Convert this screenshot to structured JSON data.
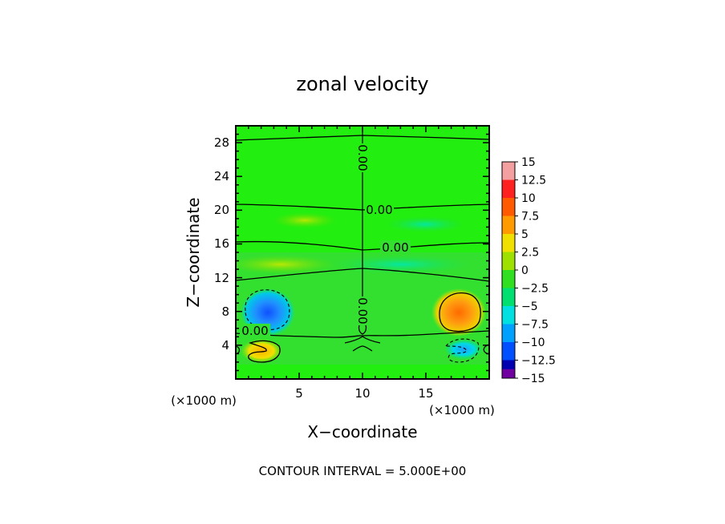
{
  "chart_data": {
    "type": "heatmap",
    "title": "zonal velocity",
    "xlabel": "X−coordinate",
    "ylabel": "Z−coordinate",
    "x_unit_left": "(×1000 m)",
    "x_unit_right": "(×1000 m)",
    "xlim": [
      0,
      20
    ],
    "ylim": [
      0,
      30
    ],
    "x_ticks": [
      5,
      10,
      15
    ],
    "x_tick_labels": [
      "5",
      "10",
      "15"
    ],
    "y_ticks": [
      4,
      8,
      12,
      16,
      20,
      24,
      28
    ],
    "y_tick_labels": [
      "4",
      "8",
      "12",
      "16",
      "20",
      "24",
      "28"
    ],
    "colorbar": {
      "levels": [
        15,
        12.5,
        10,
        7.5,
        5,
        2.5,
        0,
        -2.5,
        -5,
        -7.5,
        -10,
        -12.5,
        -15
      ],
      "labels": [
        "15",
        "12.5",
        "10",
        "7.5",
        "5",
        "2.5",
        "0",
        "−2.5",
        "−5",
        "−7.5",
        "−10",
        "−12.5",
        "−15"
      ],
      "colors": [
        "#f4a0a0",
        "#ff2020",
        "#ff5a00",
        "#ff9a00",
        "#f0e000",
        "#9ee000",
        "#30e020",
        "#00e070",
        "#00e0e0",
        "#00a0ff",
        "#0050ff",
        "#0000b0",
        "#7000a0"
      ]
    },
    "contour_labels": [
      {
        "text": "0.00",
        "x": 10,
        "y": 26.5,
        "rotated": true
      },
      {
        "text": "0.00",
        "x": 11.2,
        "y": 19.8,
        "rotated": false
      },
      {
        "text": "0.00",
        "x": 12.5,
        "y": 15.4,
        "rotated": false
      },
      {
        "text": "0.00",
        "x": 10,
        "y": 7.3,
        "rotated": true
      },
      {
        "text": "0.00",
        "x": 1.6,
        "y": 5.5,
        "rotated": false
      }
    ],
    "contour_interval_label": "CONTOUR INTERVAL = 5.000E+00",
    "features": [
      {
        "name": "negative core left",
        "x": 2.6,
        "z": 8.2,
        "value": -10
      },
      {
        "name": "positive core right",
        "x": 17.5,
        "z": 8.2,
        "value": 10
      },
      {
        "name": "positive lobe lower left",
        "x": 2.5,
        "z": 3.6,
        "value": 6
      },
      {
        "name": "negative lobe lower right",
        "x": 17.5,
        "z": 3.4,
        "value": -6
      }
    ]
  }
}
